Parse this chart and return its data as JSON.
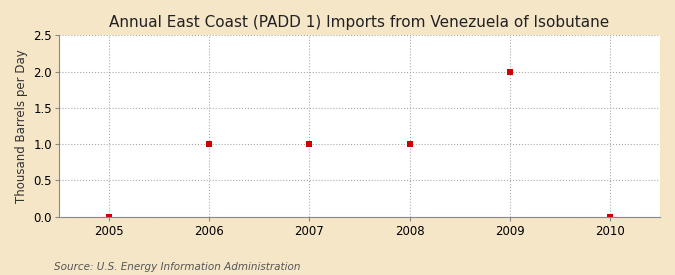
{
  "title": "Annual East Coast (PADD 1) Imports from Venezuela of Isobutane",
  "ylabel": "Thousand Barrels per Day",
  "source": "Source: U.S. Energy Information Administration",
  "x_values": [
    2005,
    2006,
    2007,
    2008,
    2009,
    2010
  ],
  "y_values": [
    0,
    1.0,
    1.0,
    1.0,
    2.0,
    0
  ],
  "xlim": [
    2004.5,
    2010.5
  ],
  "ylim": [
    0,
    2.5
  ],
  "yticks": [
    0.0,
    0.5,
    1.0,
    1.5,
    2.0,
    2.5
  ],
  "xticks": [
    2005,
    2006,
    2007,
    2008,
    2009,
    2010
  ],
  "marker_color": "#cc0000",
  "marker_style": "s",
  "marker_size": 4,
  "outer_bg_color": "#f5e6c8",
  "plot_bg_color": "#ffffff",
  "grid_color": "#aaaaaa",
  "title_fontsize": 11,
  "axis_label_fontsize": 8.5,
  "tick_fontsize": 8.5,
  "source_fontsize": 7.5
}
